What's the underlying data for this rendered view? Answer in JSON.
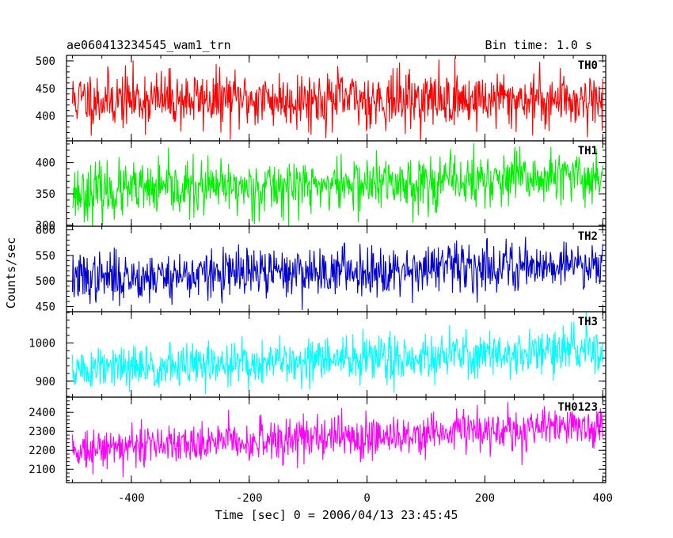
{
  "chart_data": {
    "type": "line",
    "title": "ae060413234545_wam1_trn",
    "subtitle": "Bin time: 1.0 s",
    "xlabel": "Time [sec] 0 = 2006/04/13 23:45:45",
    "ylabel": "Counts/sec",
    "xlim": [
      -510,
      405
    ],
    "x_ticks": [
      "-400",
      "-200",
      "0",
      "200",
      "400"
    ],
    "x_tick_values": [
      -400,
      -200,
      0,
      200,
      400
    ],
    "data_x_range": [
      -500,
      400
    ],
    "grid": false,
    "panels": [
      {
        "name": "TH0",
        "color": "#ff0000",
        "ylim": [
          355,
          510
        ],
        "y_ticks": [
          "400",
          "450",
          "500"
        ],
        "y_tick_values": [
          400,
          450,
          500
        ],
        "mean": 430,
        "noise": 26,
        "trend": 0,
        "seed": 11
      },
      {
        "name": "TH1",
        "color": "#00ee00",
        "ylim": [
          298,
          435
        ],
        "y_ticks": [
          "300",
          "350",
          "400"
        ],
        "y_tick_values": [
          300,
          350,
          400
        ],
        "mean": 352,
        "noise": 22,
        "trend": 25,
        "seed": 23
      },
      {
        "name": "TH2",
        "color": "#0000cc",
        "ylim": [
          440,
          607
        ],
        "y_ticks": [
          "450",
          "500",
          "550",
          "600"
        ],
        "y_tick_values": [
          450,
          500,
          550,
          600
        ],
        "mean": 505,
        "noise": 24,
        "trend": 30,
        "seed": 37
      },
      {
        "name": "TH3",
        "color": "#00ffff",
        "ylim": [
          858,
          1082
        ],
        "y_ticks": [
          "900",
          "1000"
        ],
        "y_tick_values": [
          900,
          1000
        ],
        "mean": 928,
        "noise": 30,
        "trend": 55,
        "seed": 51
      },
      {
        "name": "TH0123",
        "color": "#ff00ff",
        "ylim": [
          2030,
          2480
        ],
        "y_ticks": [
          "2100",
          "2200",
          "2300",
          "2400"
        ],
        "y_tick_values": [
          2100,
          2200,
          2300,
          2400
        ],
        "mean": 2210,
        "noise": 55,
        "trend": 120,
        "seed": 73
      }
    ]
  }
}
